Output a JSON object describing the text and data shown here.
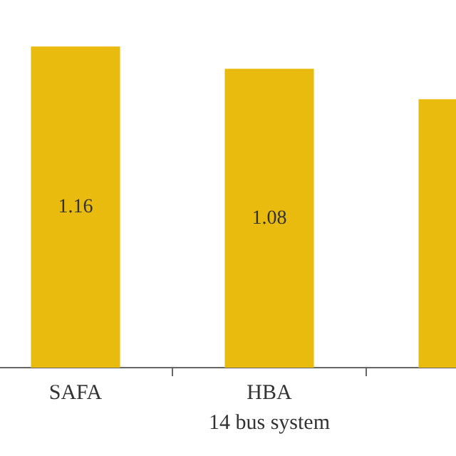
{
  "chart_data": {
    "type": "bar",
    "xlabel": "14 bus system",
    "categories": [
      "SAFA",
      "HBA",
      null
    ],
    "series": [
      {
        "color": "#e9bb0e",
        "values": [
          1.16,
          1.08,
          0.97
        ],
        "value_labels": [
          "1.16",
          "1.08",
          null
        ]
      }
    ],
    "grid": false,
    "legend": false
  }
}
